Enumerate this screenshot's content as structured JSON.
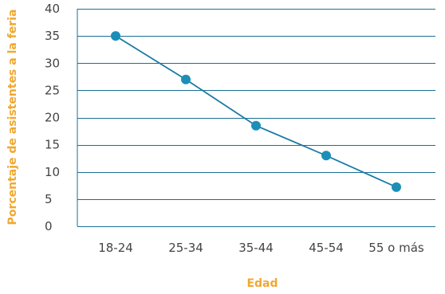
{
  "chart_data": {
    "type": "line",
    "title": "",
    "xlabel": "Edad",
    "ylabel": "Porcentaje de asistentes a la feria",
    "categories": [
      "18-24",
      "25-34",
      "35-44",
      "45-54",
      "55 o más"
    ],
    "series": [
      {
        "values": [
          35,
          27,
          18.5,
          13,
          7.2
        ]
      }
    ],
    "ylim": [
      0,
      40
    ],
    "yticks": [
      0,
      5,
      10,
      15,
      20,
      25,
      30,
      35,
      40
    ],
    "grid": true,
    "legend": "none",
    "colors": {
      "line": "#1a7aa6",
      "marker": "#1b8fb8",
      "grid": "#1a6f94",
      "axis_title": "#f0a830",
      "tick_label": "#444444"
    }
  }
}
